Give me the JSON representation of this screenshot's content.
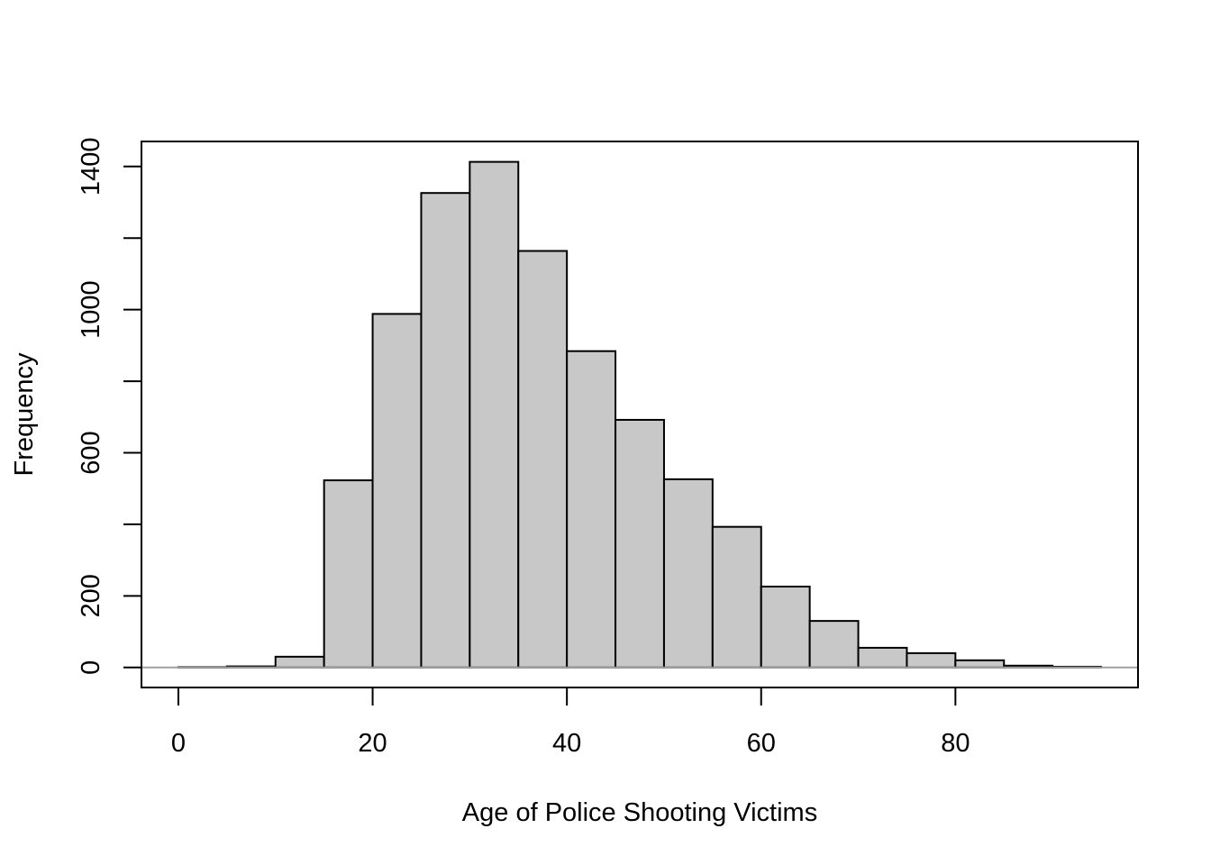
{
  "chart_data": {
    "type": "bar",
    "title": "",
    "xlabel": "Age of Police Shooting Victims",
    "ylabel": "Frequency",
    "bin_edges": [
      0,
      5,
      10,
      15,
      20,
      25,
      30,
      35,
      40,
      45,
      50,
      55,
      60,
      65,
      70,
      75,
      80,
      85,
      90,
      95
    ],
    "values": [
      1,
      3,
      30,
      523,
      988,
      1326,
      1413,
      1164,
      884,
      692,
      526,
      393,
      226,
      130,
      55,
      40,
      20,
      5,
      2
    ],
    "xlim": [
      -3.8,
      98.8
    ],
    "ylim": [
      -56,
      1470
    ],
    "x_ticks": [
      0,
      20,
      40,
      60,
      80
    ],
    "y_ticks": [
      0,
      200,
      400,
      600,
      800,
      1000,
      1200,
      1400
    ],
    "y_tick_labels": [
      "0",
      "200",
      "",
      "600",
      "",
      "1000",
      "",
      "1400"
    ],
    "grid": false,
    "bar_color": "#c8c8c8",
    "bar_edge_color": "#000000",
    "baseline_color": "#a0a0a0"
  }
}
